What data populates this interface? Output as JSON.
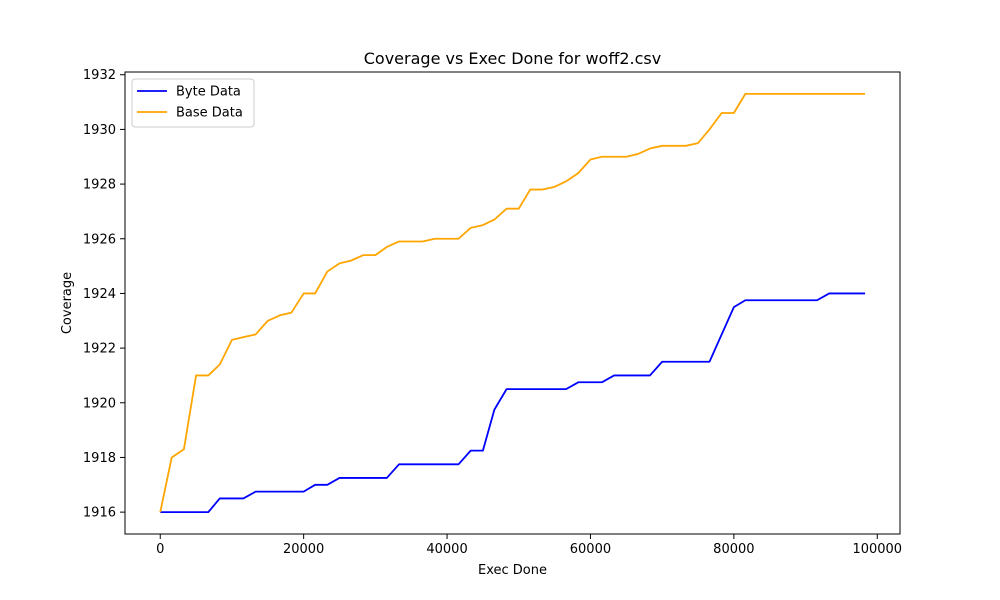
{
  "chart_data": {
    "type": "line",
    "title": "Coverage vs Exec Done for woff2.csv",
    "xlabel": "Exec Done",
    "ylabel": "Coverage",
    "xlim": [
      -4915,
      103170
    ],
    "ylim": [
      1915.2,
      1932.1
    ],
    "xticks": [
      0,
      20000,
      40000,
      60000,
      80000,
      100000
    ],
    "yticks": [
      1916,
      1918,
      1920,
      1922,
      1924,
      1926,
      1928,
      1930,
      1932
    ],
    "grid": false,
    "legend_position": "top-left",
    "series": [
      {
        "name": "Byte Data",
        "color": "#0000ff",
        "x": [
          0,
          6700,
          8300,
          11600,
          13300,
          20000,
          21600,
          23300,
          25000,
          31600,
          33300,
          41600,
          43300,
          45000,
          46600,
          48300,
          56600,
          58300,
          61600,
          63300,
          68300,
          70000,
          76600,
          80000,
          81600,
          91600,
          93300,
          98300
        ],
        "y": [
          1916,
          1916,
          1916.5,
          1916.5,
          1916.75,
          1916.75,
          1917,
          1917,
          1917.25,
          1917.25,
          1917.75,
          1917.75,
          1918.25,
          1918.25,
          1919.75,
          1920.5,
          1920.5,
          1920.75,
          1920.75,
          1921,
          1921,
          1921.5,
          1921.5,
          1923.5,
          1923.75,
          1923.75,
          1924,
          1924
        ]
      },
      {
        "name": "Base Data",
        "color": "#ffa500",
        "x": [
          0,
          1600,
          3300,
          5000,
          6700,
          8300,
          10000,
          11600,
          13300,
          15000,
          16700,
          18300,
          20000,
          21600,
          23300,
          25000,
          26600,
          28300,
          30000,
          31600,
          33300,
          36600,
          38300,
          41600,
          43300,
          45000,
          46600,
          48300,
          50000,
          51600,
          53300,
          55000,
          56600,
          58300,
          60000,
          61600,
          65000,
          66600,
          68300,
          70000,
          73300,
          75000,
          76600,
          78300,
          80000,
          81600,
          98300
        ],
        "y": [
          1916,
          1918,
          1918.3,
          1921,
          1921,
          1921.4,
          1922.3,
          1922.4,
          1922.5,
          1923,
          1923.2,
          1923.3,
          1924,
          1924,
          1924.8,
          1925.1,
          1925.2,
          1925.4,
          1925.4,
          1925.7,
          1925.9,
          1925.9,
          1926,
          1926,
          1926.4,
          1926.5,
          1926.7,
          1927.1,
          1927.1,
          1927.8,
          1927.8,
          1927.9,
          1928.1,
          1928.4,
          1928.9,
          1929,
          1929,
          1929.1,
          1929.3,
          1929.4,
          1929.4,
          1929.5,
          1930,
          1930.6,
          1930.6,
          1931.3,
          1931.3
        ]
      }
    ]
  }
}
